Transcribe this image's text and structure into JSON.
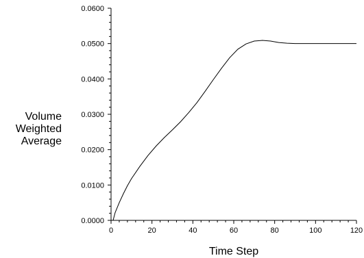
{
  "chart_data": {
    "type": "line",
    "title": "",
    "xlabel": "Time Step",
    "ylabel_lines": [
      "Volume",
      "Weighted",
      "Average"
    ],
    "xlim": [
      0,
      120
    ],
    "ylim": [
      0,
      0.06
    ],
    "x_ticks": [
      0,
      20,
      40,
      60,
      80,
      100,
      120
    ],
    "x_tick_labels": [
      "0",
      "20",
      "40",
      "60",
      "80",
      "100",
      "120"
    ],
    "y_ticks": [
      0,
      0.01,
      0.02,
      0.03,
      0.04,
      0.05,
      0.06
    ],
    "y_tick_labels": [
      "0.0000",
      "0.0100",
      "0.0200",
      "0.0300",
      "0.0400",
      "0.0500",
      "0.0600"
    ],
    "grid": false,
    "line_color": "#000000",
    "series": [
      {
        "x": [
          1,
          2,
          4,
          6,
          8,
          10,
          14,
          18,
          22,
          26,
          30,
          34,
          38,
          42,
          46,
          50,
          54,
          58,
          62,
          66,
          70,
          74,
          78,
          82,
          86,
          90,
          95,
          100,
          110,
          120
        ],
        "values": [
          0.0,
          0.0022,
          0.005,
          0.0075,
          0.0098,
          0.0118,
          0.0152,
          0.0183,
          0.021,
          0.0234,
          0.0256,
          0.0279,
          0.0305,
          0.0333,
          0.0365,
          0.0398,
          0.043,
          0.046,
          0.0484,
          0.0499,
          0.0507,
          0.0509,
          0.0507,
          0.0503,
          0.0501,
          0.05,
          0.05,
          0.05,
          0.05,
          0.05
        ]
      }
    ]
  }
}
